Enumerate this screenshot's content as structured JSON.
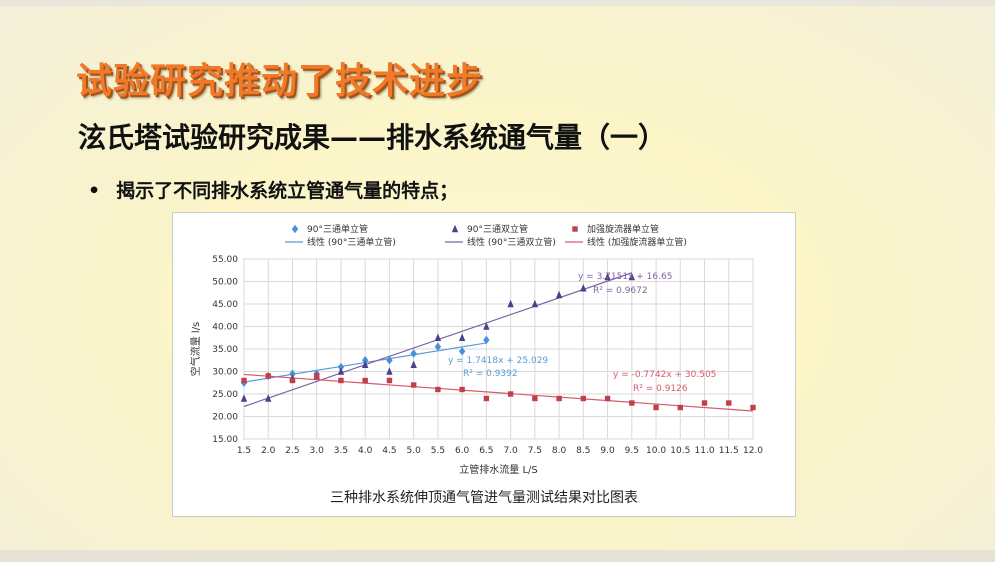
{
  "slide": {
    "title": "试验研究推动了技术进步",
    "subtitle": "泫氏塔试验研究成果——排水系统通气量（一）",
    "bullet": "揭示了不同排水系统立管通气量的特点；"
  },
  "chart_data": {
    "type": "scatter",
    "caption": "三种排水系统伸顶通气管进气量测试结果对比图表",
    "xlabel": "立管排水流量  L/S",
    "ylabel": "空气流量  l/s",
    "xlim": [
      1.5,
      12.0
    ],
    "ylim": [
      15.0,
      55.0
    ],
    "x_ticks": [
      "1.5",
      "2.0",
      "2.5",
      "3.0",
      "3.5",
      "4.0",
      "4.5",
      "5.0",
      "5.5",
      "6.0",
      "6.5",
      "7.0",
      "7.5",
      "8.0",
      "8.5",
      "9.0",
      "9.5",
      "10.0",
      "10.5",
      "11.0",
      "11.5",
      "12.0"
    ],
    "y_ticks": [
      "15.00",
      "20.00",
      "25.00",
      "30.00",
      "35.00",
      "40.00",
      "45.00",
      "50.00",
      "55.00"
    ],
    "grid": true,
    "legend_position": "top",
    "series": [
      {
        "name": "90°三通单立管",
        "marker": "diamond",
        "color": "#4a90d9",
        "x": [
          1.5,
          2.0,
          2.5,
          3.0,
          3.5,
          4.0,
          4.5,
          5.0,
          5.5,
          6.0,
          6.5
        ],
        "y": [
          27.5,
          29.0,
          29.5,
          29.5,
          31.0,
          32.5,
          32.5,
          34.0,
          35.5,
          34.5,
          37.0
        ],
        "trend": {
          "name": "线性 (90°三通单立管)",
          "slope": 1.7418,
          "intercept": 25.029,
          "x_range": [
            1.5,
            6.5
          ],
          "equation": "y = 1.7418x + 25.029",
          "r2": "R² = 0.9392",
          "color": "#5b9bd5"
        }
      },
      {
        "name": "90°三通双立管",
        "marker": "triangle",
        "color": "#4b3f8f",
        "x": [
          1.5,
          2.0,
          2.5,
          3.0,
          3.5,
          4.0,
          4.5,
          5.0,
          5.5,
          6.0,
          6.5,
          7.0,
          7.5,
          8.0,
          8.5,
          9.0,
          9.5
        ],
        "y": [
          24.0,
          24.0,
          28.5,
          29.0,
          30.0,
          31.5,
          30.0,
          31.5,
          37.5,
          37.5,
          40.0,
          45.0,
          45.0,
          47.0,
          48.5,
          51.0,
          51.0
        ],
        "trend": {
          "name": "线性 (90°三通双立管)",
          "slope": 3.7151,
          "intercept": 16.65,
          "x_range": [
            1.5,
            9.5
          ],
          "equation": "y = 3.7151x + 16.65",
          "r2": "R² = 0.9672",
          "color": "#8064a2"
        }
      },
      {
        "name": "加强旋流器单立管",
        "marker": "square",
        "color": "#c0404a",
        "x": [
          1.5,
          2.0,
          2.5,
          3.0,
          3.5,
          4.0,
          4.5,
          5.0,
          5.5,
          6.0,
          6.5,
          7.0,
          7.5,
          8.0,
          8.5,
          9.0,
          9.5,
          10.0,
          10.5,
          11.0,
          11.5,
          12.0
        ],
        "y": [
          28.0,
          29.0,
          28.0,
          29.0,
          28.0,
          28.0,
          28.0,
          27.0,
          26.0,
          26.0,
          24.0,
          25.0,
          24.0,
          24.0,
          24.0,
          24.0,
          23.0,
          22.0,
          22.0,
          23.0,
          23.0,
          22.0
        ],
        "trend": {
          "name": "线性 (加强旋流器单立管)",
          "slope": -0.7742,
          "intercept": 30.505,
          "x_range": [
            1.5,
            12.0
          ],
          "equation": "y = -0.7742x + 30.505",
          "r2": "R² = 0.9126",
          "color": "#d65a6a"
        }
      }
    ]
  }
}
